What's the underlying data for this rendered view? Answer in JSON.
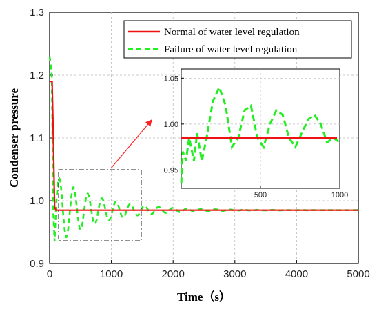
{
  "chart_data": {
    "type": "line",
    "xlabel": "Time（s）",
    "ylabel": "Condenser pressure",
    "xlim": [
      0,
      5000
    ],
    "ylim": [
      0.9,
      1.3
    ],
    "xticks": [
      "0",
      "1000",
      "2000",
      "3000",
      "4000",
      "5000"
    ],
    "yticks": [
      "0.9",
      "1.0",
      "1.1",
      "1.2",
      "1.3"
    ],
    "grid": true,
    "legend_position": "top-right",
    "series": [
      {
        "name": "Normal of water level regulation",
        "color": "#ee1111",
        "style": "solid",
        "x": [
          0,
          20,
          40,
          60,
          80,
          100,
          150,
          300,
          1000,
          2000,
          3000,
          4000,
          5000
        ],
        "y": [
          1.19,
          1.19,
          1.19,
          1.1,
          0.99,
          0.985,
          0.985,
          0.985,
          0.985,
          0.985,
          0.985,
          0.985,
          0.985
        ]
      },
      {
        "name": "Failure of water level regulation",
        "color": "#22ee22",
        "style": "dashed",
        "params": {
          "base": 0.985,
          "amp": 0.055,
          "period": 230,
          "tau": 700,
          "start": 100
        }
      }
    ],
    "inset": {
      "xlim": [
        0,
        1000
      ],
      "ylim": [
        0.93,
        1.06
      ],
      "xticks": [
        "500",
        "1000"
      ],
      "yticks": [
        "0.95",
        "1.00",
        "1.05"
      ],
      "normal_value": 0.985,
      "failure": {
        "x": [
          0,
          10,
          30,
          50,
          80,
          100,
          130,
          160,
          200,
          240,
          280,
          320,
          360,
          400,
          440,
          480,
          520,
          560,
          600,
          640,
          680,
          720,
          760,
          800,
          840,
          880,
          920,
          960,
          1000
        ],
        "y": [
          0.935,
          0.97,
          0.96,
          0.985,
          0.96,
          0.99,
          0.96,
          0.985,
          1.025,
          1.04,
          1.02,
          0.975,
          0.985,
          1.015,
          1.02,
          0.985,
          0.975,
          1.0,
          1.015,
          1.01,
          0.985,
          0.975,
          0.99,
          1.005,
          1.01,
          1.0,
          0.98,
          0.985,
          0.98
        ]
      }
    }
  }
}
